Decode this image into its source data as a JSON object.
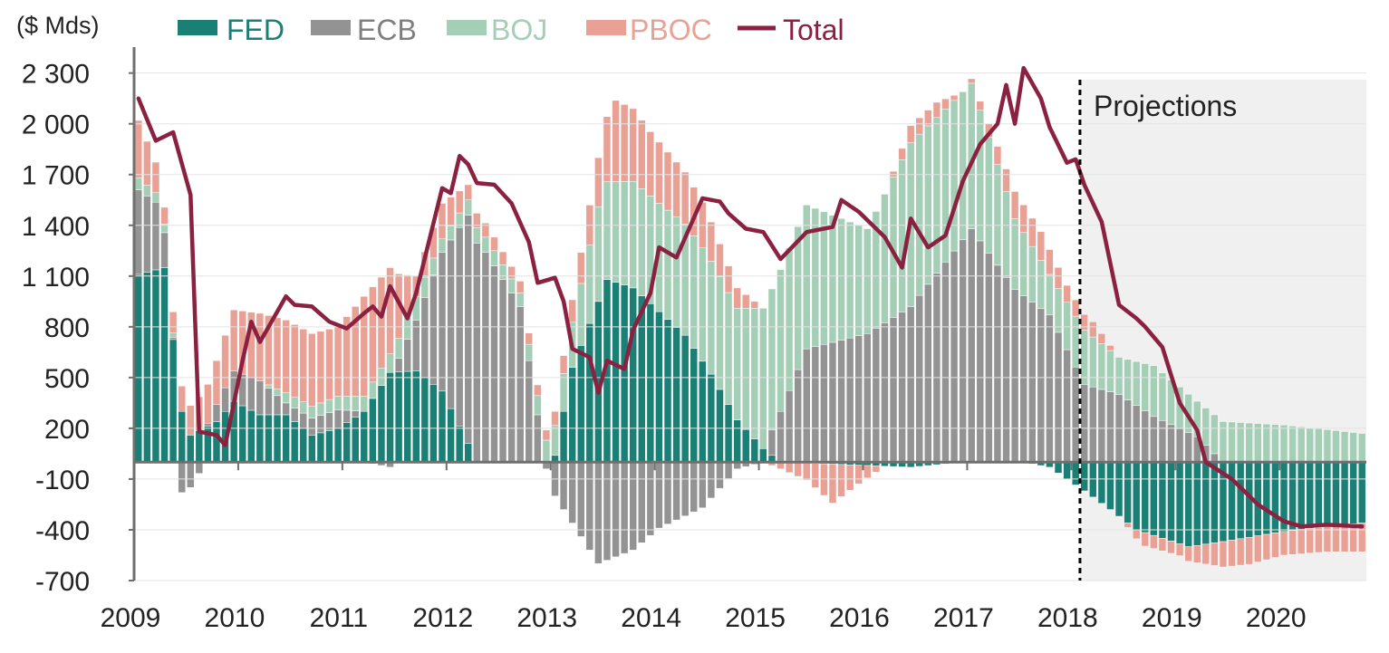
{
  "chart_data": {
    "type": "bar",
    "stacked": true,
    "unit_label": "($ Mds)",
    "projection_label": "Projections",
    "projection_start": "2018-02",
    "x_ticks": [
      "2009",
      "2010",
      "2011",
      "2012",
      "2013",
      "2014",
      "2015",
      "2016",
      "2017",
      "2018",
      "2019",
      "2020"
    ],
    "y_ticks": [
      "2 300",
      "2 000",
      "1 700",
      "1 400",
      "1 100",
      "800",
      "500",
      "200",
      "-100",
      "-400",
      "-700"
    ],
    "ylim": [
      -700,
      2400
    ],
    "legend_position": "top",
    "colors": {
      "FED": "#1a7f74",
      "ECB": "#939393",
      "BOJ": "#a5ceb7",
      "PBOC": "#e8a194",
      "Total": "#8b2140",
      "projection_bg": "#f0f0f0"
    },
    "x_start": "2009-01",
    "x_end": "2020-10",
    "series": [
      {
        "name": "FED",
        "points": [
          [
            "2009-01",
            1110
          ],
          [
            "2009-04",
            1150
          ],
          [
            "2009-06",
            300
          ],
          [
            "2009-07",
            160
          ],
          [
            "2009-10",
            240
          ],
          [
            "2009-12",
            360
          ],
          [
            "2010-03",
            280
          ],
          [
            "2010-06",
            280
          ],
          [
            "2010-09",
            160
          ],
          [
            "2010-12",
            200
          ],
          [
            "2011-03",
            300
          ],
          [
            "2011-06",
            530
          ],
          [
            "2011-09",
            540
          ],
          [
            "2011-12",
            420
          ],
          [
            "2012-03",
            110
          ],
          [
            "2012-04",
            0
          ],
          [
            "2012-12",
            0
          ],
          [
            "2013-01",
            40
          ],
          [
            "2013-03",
            560
          ],
          [
            "2013-07",
            1080
          ],
          [
            "2013-10",
            1030
          ],
          [
            "2014-01",
            890
          ],
          [
            "2014-04",
            750
          ],
          [
            "2014-07",
            520
          ],
          [
            "2014-10",
            250
          ],
          [
            "2015-01",
            80
          ],
          [
            "2015-03",
            0
          ],
          [
            "2016-06",
            -30
          ],
          [
            "2016-12",
            0
          ],
          [
            "2017-07",
            0
          ],
          [
            "2017-10",
            -30
          ],
          [
            "2018-02",
            -170
          ],
          [
            "2018-05",
            -280
          ],
          [
            "2018-08",
            -400
          ],
          [
            "2019-02",
            -500
          ],
          [
            "2019-06",
            -470
          ],
          [
            "2020-01",
            -410
          ],
          [
            "2020-06",
            -380
          ],
          [
            "2020-10",
            -360
          ]
        ]
      },
      {
        "name": "ECB",
        "points": [
          [
            "2009-01",
            500
          ],
          [
            "2009-03",
            400
          ],
          [
            "2009-06",
            -180
          ],
          [
            "2009-07",
            -150
          ],
          [
            "2009-10",
            100
          ],
          [
            "2009-12",
            180
          ],
          [
            "2010-03",
            200
          ],
          [
            "2010-06",
            70
          ],
          [
            "2010-09",
            100
          ],
          [
            "2010-12",
            110
          ],
          [
            "2011-03",
            0
          ],
          [
            "2011-06",
            -30
          ],
          [
            "2011-09",
            300
          ],
          [
            "2011-12",
            820
          ],
          [
            "2012-03",
            1350
          ],
          [
            "2012-05",
            1240
          ],
          [
            "2012-09",
            920
          ],
          [
            "2012-12",
            -40
          ],
          [
            "2013-01",
            -200
          ],
          [
            "2013-06",
            -600
          ],
          [
            "2013-10",
            -520
          ],
          [
            "2014-01",
            -390
          ],
          [
            "2014-06",
            -270
          ],
          [
            "2014-10",
            -40
          ],
          [
            "2015-01",
            0
          ],
          [
            "2015-03",
            300
          ],
          [
            "2015-06",
            670
          ],
          [
            "2016-01",
            760
          ],
          [
            "2016-06",
            920
          ],
          [
            "2017-01",
            1380
          ],
          [
            "2017-06",
            1020
          ],
          [
            "2017-10",
            870
          ],
          [
            "2018-02",
            460
          ],
          [
            "2018-06",
            400
          ],
          [
            "2018-10",
            270
          ],
          [
            "2019-03",
            150
          ],
          [
            "2019-06",
            0
          ],
          [
            "2020-10",
            0
          ]
        ]
      },
      {
        "name": "BOJ",
        "points": [
          [
            "2009-01",
            70
          ],
          [
            "2009-04",
            50
          ],
          [
            "2009-06",
            0
          ],
          [
            "2010-03",
            0
          ],
          [
            "2010-06",
            60
          ],
          [
            "2010-12",
            80
          ],
          [
            "2011-03",
            90
          ],
          [
            "2011-06",
            110
          ],
          [
            "2011-09",
            140
          ],
          [
            "2011-12",
            80
          ],
          [
            "2012-03",
            90
          ],
          [
            "2012-06",
            90
          ],
          [
            "2012-09",
            80
          ],
          [
            "2012-12",
            130
          ],
          [
            "2013-03",
            270
          ],
          [
            "2013-06",
            560
          ],
          [
            "2013-10",
            630
          ],
          [
            "2014-01",
            640
          ],
          [
            "2014-06",
            670
          ],
          [
            "2014-10",
            660
          ],
          [
            "2015-01",
            830
          ],
          [
            "2015-06",
            850
          ],
          [
            "2016-01",
            620
          ],
          [
            "2016-06",
            970
          ],
          [
            "2016-09",
            920
          ],
          [
            "2017-01",
            860
          ],
          [
            "2017-06",
            420
          ],
          [
            "2017-10",
            240
          ],
          [
            "2018-02",
            320
          ],
          [
            "2018-06",
            220
          ],
          [
            "2018-10",
            300
          ],
          [
            "2019-03",
            210
          ],
          [
            "2019-06",
            240
          ],
          [
            "2020-01",
            220
          ],
          [
            "2020-10",
            170
          ]
        ]
      },
      {
        "name": "PBOC",
        "points": [
          [
            "2009-01",
            340
          ],
          [
            "2009-04",
            100
          ],
          [
            "2009-06",
            150
          ],
          [
            "2009-08",
            200
          ],
          [
            "2009-10",
            260
          ],
          [
            "2009-12",
            360
          ],
          [
            "2010-03",
            400
          ],
          [
            "2010-06",
            430
          ],
          [
            "2010-09",
            430
          ],
          [
            "2010-12",
            410
          ],
          [
            "2011-03",
            590
          ],
          [
            "2011-06",
            510
          ],
          [
            "2011-09",
            120
          ],
          [
            "2011-12",
            210
          ],
          [
            "2012-03",
            90
          ],
          [
            "2012-06",
            80
          ],
          [
            "2012-09",
            70
          ],
          [
            "2012-12",
            60
          ],
          [
            "2013-03",
            130
          ],
          [
            "2013-06",
            290
          ],
          [
            "2013-08",
            480
          ],
          [
            "2013-12",
            380
          ],
          [
            "2014-06",
            270
          ],
          [
            "2014-10",
            120
          ],
          [
            "2015-01",
            0
          ],
          [
            "2015-06",
            -100
          ],
          [
            "2015-09",
            -230
          ],
          [
            "2015-12",
            -110
          ],
          [
            "2016-03",
            0
          ],
          [
            "2016-06",
            100
          ],
          [
            "2016-09",
            90
          ],
          [
            "2016-12",
            0
          ],
          [
            "2017-06",
            160
          ],
          [
            "2017-09",
            170
          ],
          [
            "2017-12",
            100
          ],
          [
            "2018-03",
            90
          ],
          [
            "2018-06",
            0
          ],
          [
            "2018-09",
            -80
          ],
          [
            "2019-01",
            -70
          ],
          [
            "2019-06",
            -150
          ],
          [
            "2019-09",
            -160
          ],
          [
            "2020-01",
            -140
          ],
          [
            "2020-06",
            -150
          ],
          [
            "2020-10",
            -170
          ]
        ]
      },
      {
        "name": "Total",
        "points": [
          [
            "2009-01",
            2150
          ],
          [
            "2009-03",
            1900
          ],
          [
            "2009-05",
            1950
          ],
          [
            "2009-07",
            1580
          ],
          [
            "2009-08",
            180
          ],
          [
            "2009-10",
            160
          ],
          [
            "2009-11",
            100
          ],
          [
            "2010-01",
            600
          ],
          [
            "2010-02",
            830
          ],
          [
            "2010-03",
            710
          ],
          [
            "2010-06",
            980
          ],
          [
            "2010-07",
            930
          ],
          [
            "2010-09",
            920
          ],
          [
            "2010-11",
            830
          ],
          [
            "2011-01",
            790
          ],
          [
            "2011-03",
            880
          ],
          [
            "2011-04",
            920
          ],
          [
            "2011-05",
            860
          ],
          [
            "2011-06",
            1040
          ],
          [
            "2011-08",
            850
          ],
          [
            "2011-09",
            1000
          ],
          [
            "2011-12",
            1620
          ],
          [
            "2012-01",
            1590
          ],
          [
            "2012-02",
            1810
          ],
          [
            "2012-03",
            1760
          ],
          [
            "2012-04",
            1650
          ],
          [
            "2012-06",
            1640
          ],
          [
            "2012-08",
            1530
          ],
          [
            "2012-10",
            1300
          ],
          [
            "2012-11",
            1060
          ],
          [
            "2013-01",
            1090
          ],
          [
            "2013-02",
            950
          ],
          [
            "2013-03",
            670
          ],
          [
            "2013-05",
            620
          ],
          [
            "2013-06",
            410
          ],
          [
            "2013-07",
            600
          ],
          [
            "2013-09",
            550
          ],
          [
            "2013-10",
            780
          ],
          [
            "2013-12",
            1000
          ],
          [
            "2014-01",
            1270
          ],
          [
            "2014-03",
            1210
          ],
          [
            "2014-06",
            1560
          ],
          [
            "2014-08",
            1540
          ],
          [
            "2014-09",
            1470
          ],
          [
            "2014-11",
            1380
          ],
          [
            "2015-01",
            1360
          ],
          [
            "2015-03",
            1200
          ],
          [
            "2015-06",
            1360
          ],
          [
            "2015-09",
            1390
          ],
          [
            "2015-10",
            1550
          ],
          [
            "2015-12",
            1480
          ],
          [
            "2016-03",
            1330
          ],
          [
            "2016-05",
            1150
          ],
          [
            "2016-06",
            1440
          ],
          [
            "2016-08",
            1270
          ],
          [
            "2016-10",
            1340
          ],
          [
            "2016-12",
            1660
          ],
          [
            "2017-02",
            1880
          ],
          [
            "2017-04",
            2000
          ],
          [
            "2017-05",
            2230
          ],
          [
            "2017-06",
            2000
          ],
          [
            "2017-07",
            2330
          ],
          [
            "2017-09",
            2150
          ],
          [
            "2017-10",
            1980
          ],
          [
            "2017-12",
            1770
          ],
          [
            "2018-01",
            1790
          ],
          [
            "2018-02",
            1640
          ],
          [
            "2018-04",
            1420
          ],
          [
            "2018-06",
            930
          ],
          [
            "2018-08",
            850
          ],
          [
            "2018-09",
            800
          ],
          [
            "2018-11",
            680
          ],
          [
            "2019-01",
            350
          ],
          [
            "2019-03",
            190
          ],
          [
            "2019-04",
            0
          ],
          [
            "2019-07",
            -100
          ],
          [
            "2019-10",
            -250
          ],
          [
            "2020-01",
            -350
          ],
          [
            "2020-03",
            -380
          ],
          [
            "2020-06",
            -370
          ],
          [
            "2020-10",
            -380
          ]
        ]
      }
    ],
    "legend": [
      "FED",
      "ECB",
      "BOJ",
      "PBOC",
      "Total"
    ]
  }
}
